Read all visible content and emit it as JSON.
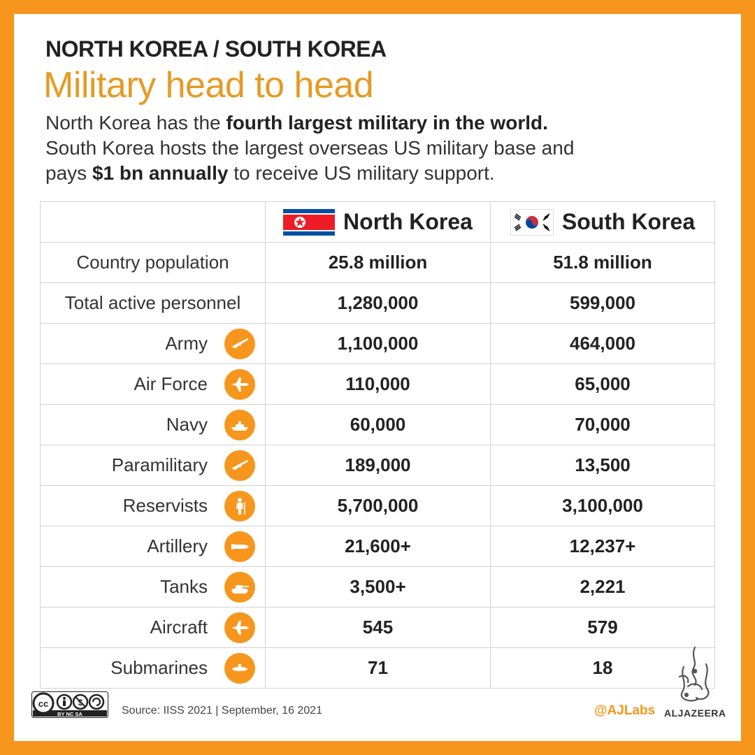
{
  "header": {
    "kicker": "NORTH KOREA / SOUTH KOREA",
    "title": "Military head to head",
    "intro": {
      "l1_pre": "North Korea has the ",
      "l1_bold": "fourth largest military in the world.",
      "l2": "South Korea hosts the largest overseas US military base and",
      "l3_pre": "pays ",
      "l3_bold": "$1 bn annually",
      "l3_post": " to receive US military support."
    }
  },
  "table": {
    "columns": [
      "North Korea",
      "South Korea"
    ],
    "rows": [
      {
        "label": "Country population",
        "icon": null,
        "north": "25.8 million",
        "south": "51.8 million"
      },
      {
        "label": "Total active personnel",
        "icon": null,
        "north": "1,280,000",
        "south": "599,000"
      },
      {
        "label": "Army",
        "icon": "rifle-icon",
        "north": "1,100,000",
        "south": "464,000"
      },
      {
        "label": "Air Force",
        "icon": "jet-icon",
        "north": "110,000",
        "south": "65,000"
      },
      {
        "label": "Navy",
        "icon": "ship-icon",
        "north": "60,000",
        "south": "70,000"
      },
      {
        "label": "Paramilitary",
        "icon": "rifle-icon",
        "north": "189,000",
        "south": "13,500"
      },
      {
        "label": "Reservists",
        "icon": "soldier-icon",
        "north": "5,700,000",
        "south": "3,100,000"
      },
      {
        "label": "Artillery",
        "icon": "shell-icon",
        "north": "21,600+",
        "south": "12,237+"
      },
      {
        "label": "Tanks",
        "icon": "tank-icon",
        "north": "3,500+",
        "south": "2,221"
      },
      {
        "label": "Aircraft",
        "icon": "jet-icon",
        "north": "545",
        "south": "579"
      },
      {
        "label": "Submarines",
        "icon": "submarine-icon",
        "north": "71",
        "south": "18"
      }
    ]
  },
  "footer": {
    "license": "BY NC SA",
    "source": "Source: IISS 2021 | September, 16 2021",
    "handle": "@AJLabs",
    "brand": "ALJAZEERA"
  },
  "colors": {
    "accent": "#f7961d",
    "title": "#e69a24",
    "nk_red": "#ed1c27",
    "nk_blue": "#024fa2",
    "sk_red": "#cd2e3a",
    "sk_blue": "#0047a0"
  }
}
